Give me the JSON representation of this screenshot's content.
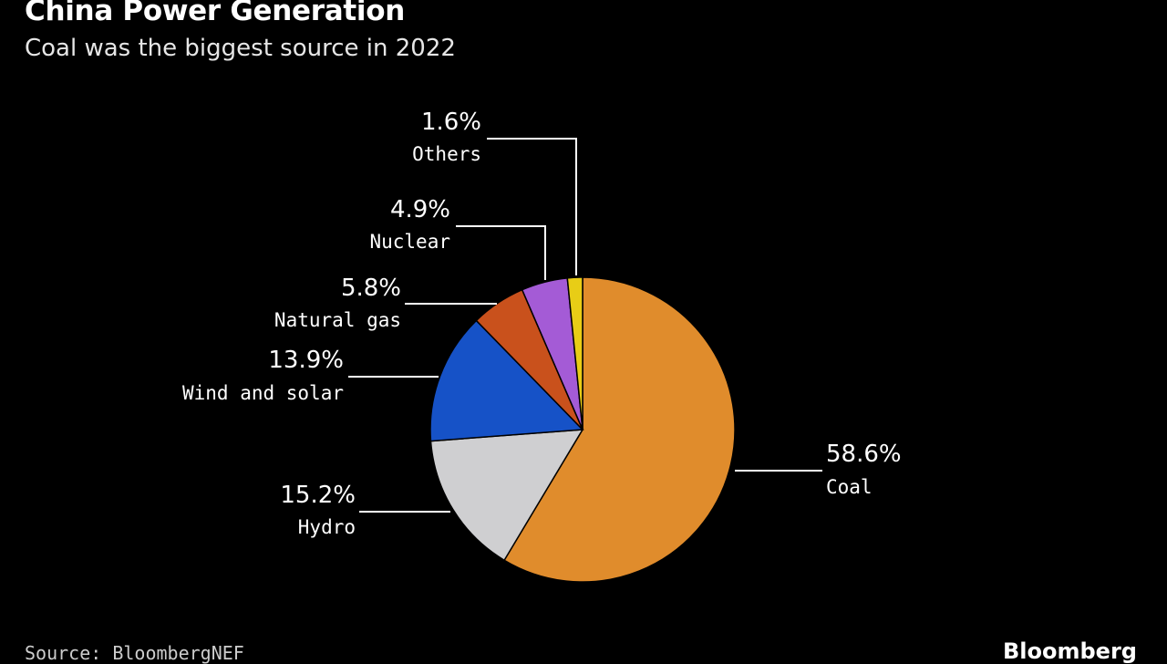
{
  "chart_data": {
    "type": "pie",
    "title": "China Power Generation",
    "subtitle": "Coal was the biggest source in 2022",
    "slices": [
      {
        "label": "Coal",
        "value": 58.6,
        "display": "58.6%",
        "color": "#e08c2c"
      },
      {
        "label": "Hydro",
        "value": 15.2,
        "display": "15.2%",
        "color": "#cfcfd1"
      },
      {
        "label": "Wind and solar",
        "value": 13.9,
        "display": "13.9%",
        "color": "#1652c7"
      },
      {
        "label": "Natural gas",
        "value": 5.8,
        "display": "5.8%",
        "color": "#c9511c"
      },
      {
        "label": "Nuclear",
        "value": 4.9,
        "display": "4.9%",
        "color": "#a45bd6"
      },
      {
        "label": "Others",
        "value": 1.6,
        "display": "1.6%",
        "color": "#e8cd16"
      }
    ],
    "source": "Source: BloombergNEF",
    "brand": "Bloomberg"
  }
}
